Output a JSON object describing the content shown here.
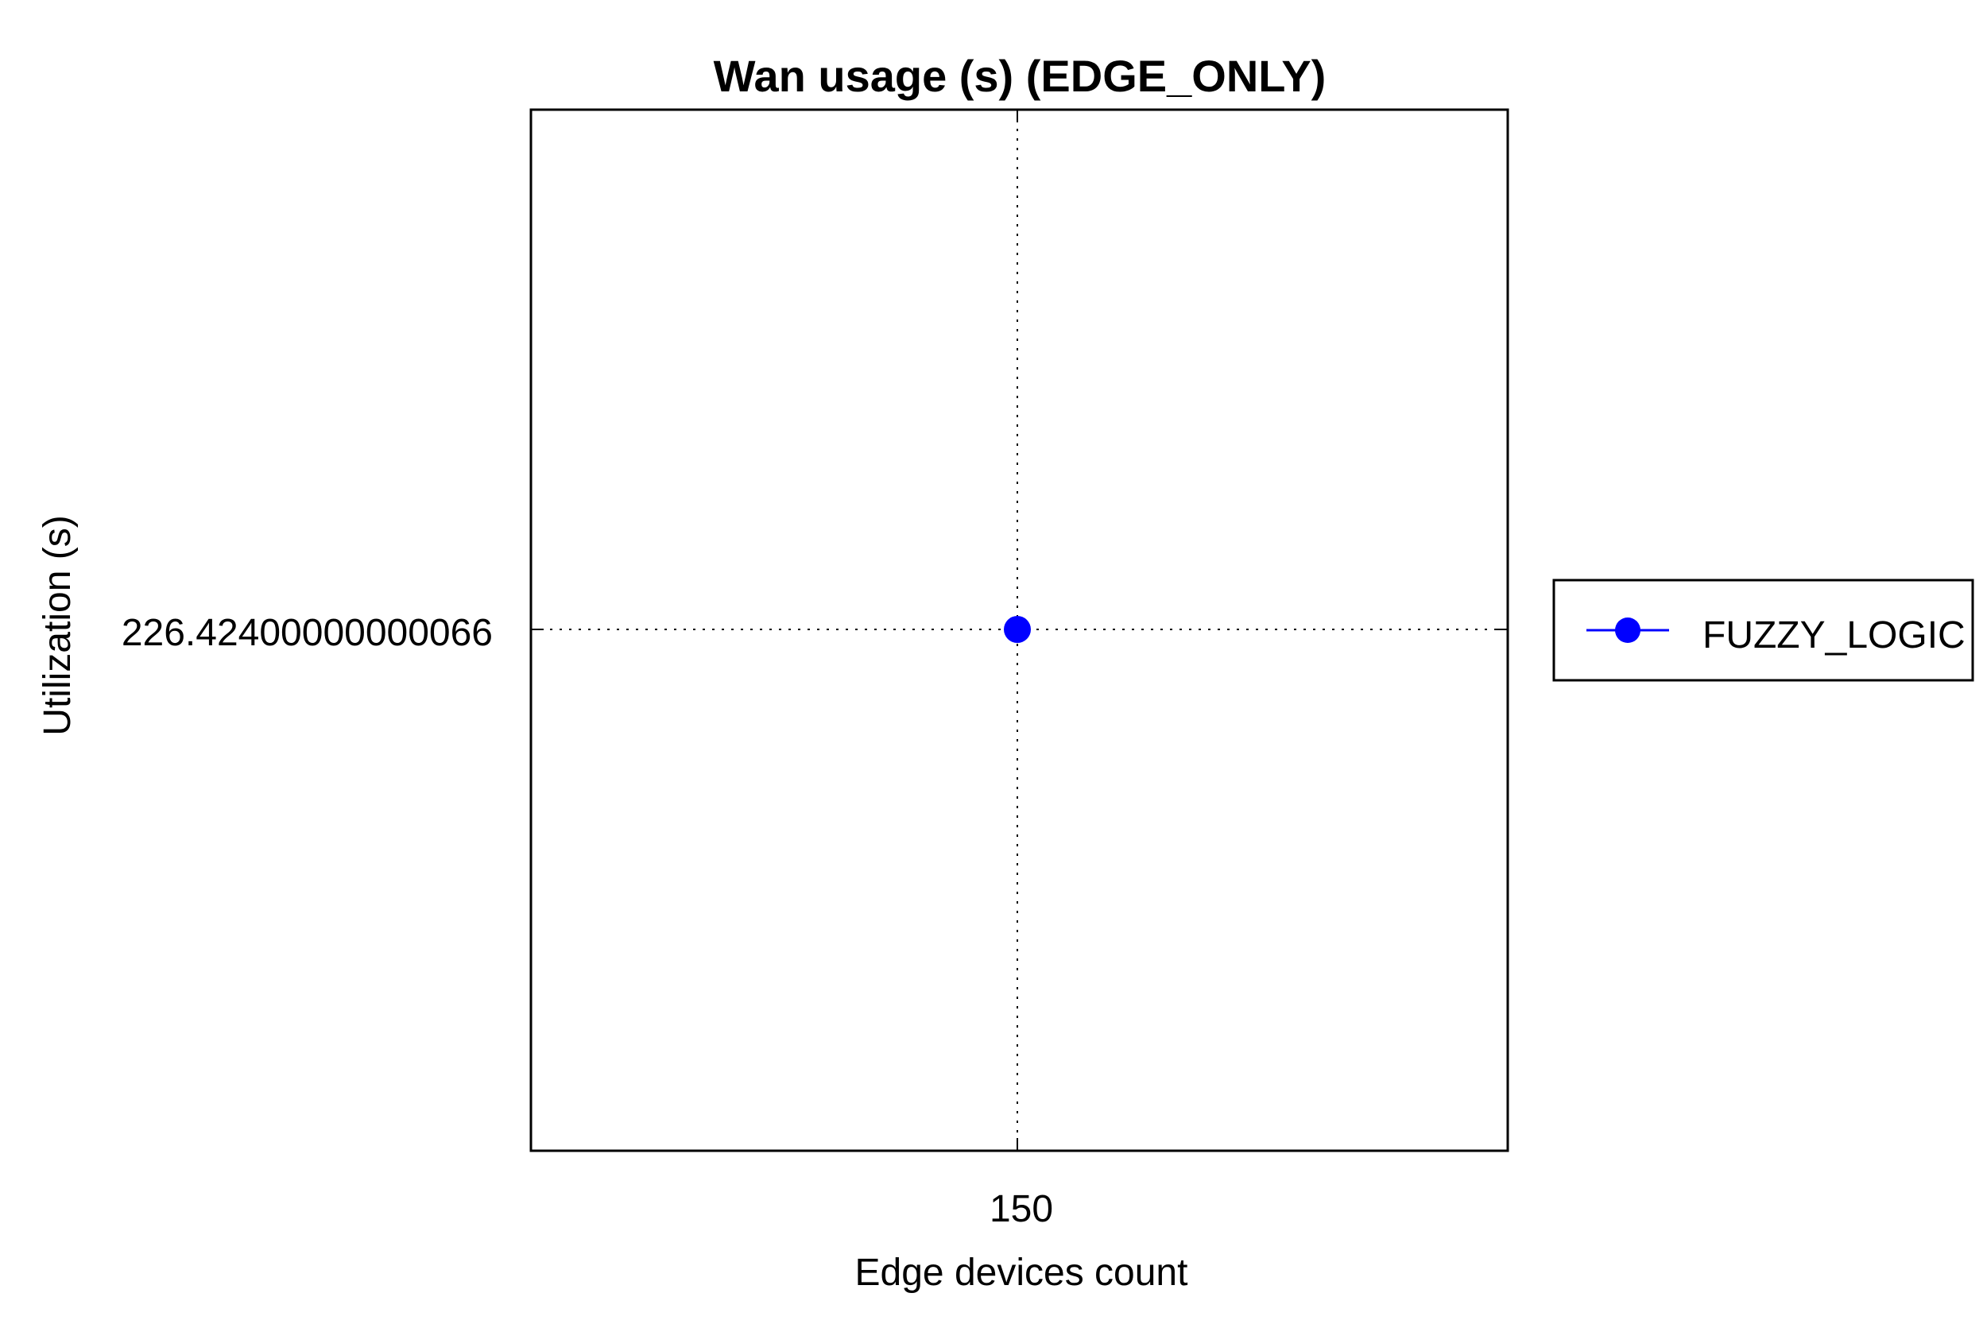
{
  "chart_data": {
    "type": "line",
    "title": "Wan usage (s) (EDGE_ONLY)",
    "xlabel": "Edge devices count",
    "ylabel": "Utilization (s)",
    "x": [
      150
    ],
    "x_tick_labels": [
      "150"
    ],
    "y_tick_labels": [
      "226.42400000000066"
    ],
    "series": [
      {
        "name": "FUZZY_LOGIC",
        "x": [
          150
        ],
        "y": [
          226.42400000000066
        ],
        "color": "#0000ff",
        "marker": "circle"
      }
    ],
    "grid": true,
    "legend_position": "right"
  }
}
